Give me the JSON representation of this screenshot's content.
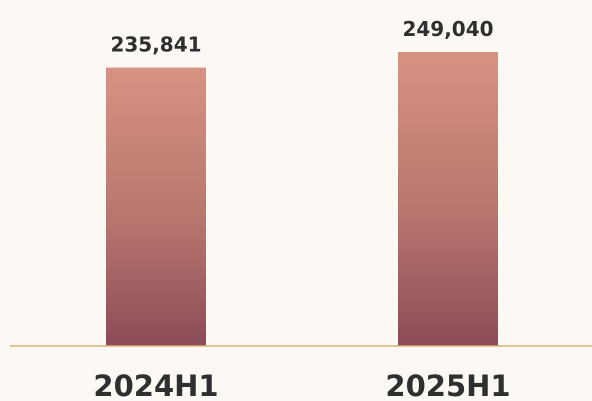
{
  "chart_data": {
    "type": "bar",
    "categories": [
      "2024H1",
      "2025H1"
    ],
    "values": [
      235841,
      249040
    ],
    "data_labels": [
      "235,841",
      "249,040"
    ],
    "title": "",
    "xlabel": "",
    "ylabel": "",
    "grid": false,
    "legend": "none",
    "colors": {
      "background": "#fcf9f5",
      "bar_top": "#d79382",
      "bar_mid": "#b7766e",
      "bar_bottom": "#8c4c58",
      "baseline": "#d8b36e",
      "text": "#2f2f2f"
    }
  }
}
